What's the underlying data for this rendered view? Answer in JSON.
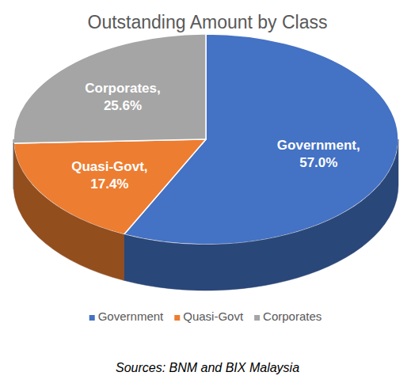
{
  "chart_data": {
    "type": "pie",
    "title": "Outstanding Amount by Class",
    "categories": [
      "Government",
      "Quasi-Govt",
      "Corporates"
    ],
    "values": [
      57.0,
      17.4,
      25.6
    ],
    "value_labels": [
      "57.0%",
      "17.4%",
      "25.6%"
    ],
    "slice_labels": [
      "Government,",
      "Quasi-Govt,",
      "Corporates,"
    ],
    "colors": [
      "#4472c4",
      "#ed7d31",
      "#a5a5a5"
    ],
    "data_labels": true,
    "legend": "bottom",
    "source": "Sources: BNM and BIX Malaysia"
  }
}
